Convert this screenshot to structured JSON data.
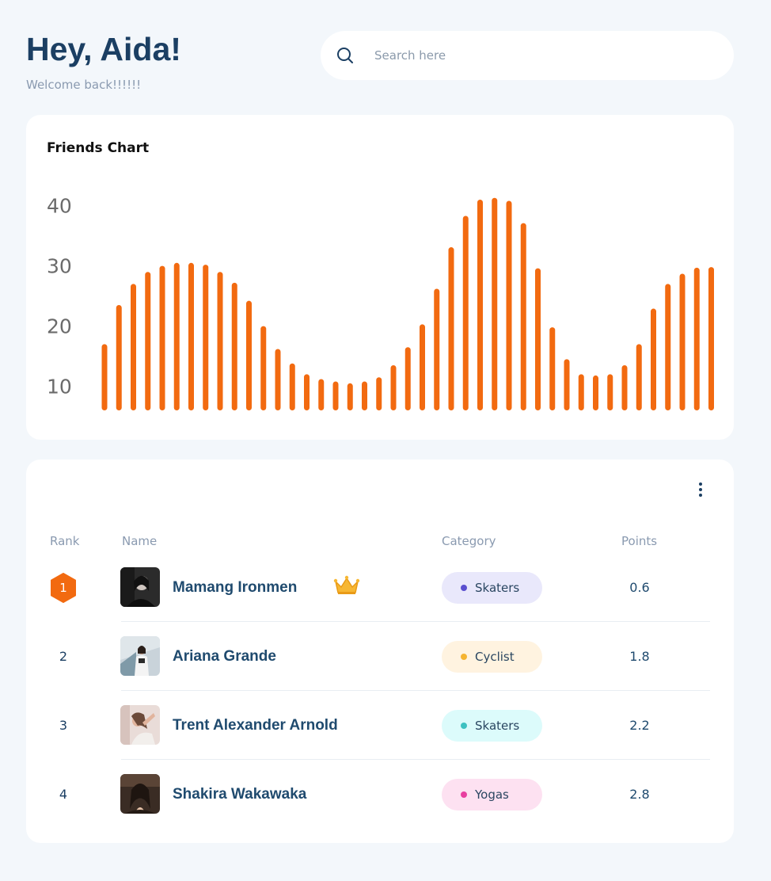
{
  "header": {
    "title": "Hey, Aida!",
    "subtitle": "Welcome back!!!!!!"
  },
  "search": {
    "icon": "search-icon",
    "placeholder": "Search here"
  },
  "colors": {
    "background": "#f3f7fb",
    "title": "#1b3f63",
    "bar": "#f26a10"
  },
  "chart_data": {
    "type": "bar",
    "title": "Friends Chart",
    "xlabel": "",
    "ylabel": "",
    "ytick_labels": [
      "10",
      "20",
      "30",
      "40"
    ],
    "ylim": [
      6,
      44
    ],
    "grid": false,
    "legend": "none",
    "values": [
      17,
      23.5,
      27,
      29,
      30,
      30.5,
      30.5,
      30.2,
      29,
      27.2,
      24.2,
      20,
      16.2,
      13.8,
      12,
      11.2,
      10.8,
      10.5,
      10.8,
      11.5,
      13.5,
      16.5,
      20.3,
      26.2,
      33.1,
      38.3,
      41,
      41.3,
      40.8,
      37.1,
      29.6,
      19.8,
      14.5,
      12,
      11.8,
      12,
      13.5,
      17,
      22.9,
      27,
      28.7,
      29.7,
      29.8
    ]
  },
  "leaderboard": {
    "menu_icon": "more-vertical-icon",
    "columns": {
      "rank": "Rank",
      "name": "Name",
      "category": "Category",
      "points": "Points"
    },
    "rows": [
      {
        "rank": "1",
        "name": "Mamang Ironmen",
        "crown": true,
        "category": "Skaters",
        "points": "0.6",
        "pill_bg": "#e9e8fb",
        "dot": "#5a4fcf"
      },
      {
        "rank": "2",
        "name": "Ariana Grande",
        "crown": false,
        "category": "Cyclist",
        "points": "1.8",
        "pill_bg": "#fff3e0",
        "dot": "#f5b431"
      },
      {
        "rank": "3",
        "name": "Trent Alexander Arnold",
        "crown": false,
        "category": "Skaters",
        "points": "2.2",
        "pill_bg": "#dcfbfb",
        "dot": "#3ec1c1"
      },
      {
        "rank": "4",
        "name": "Shakira Wakawaka",
        "crown": false,
        "category": "Yogas",
        "points": "2.8",
        "pill_bg": "#fde1f1",
        "dot": "#e83fa0"
      }
    ]
  }
}
